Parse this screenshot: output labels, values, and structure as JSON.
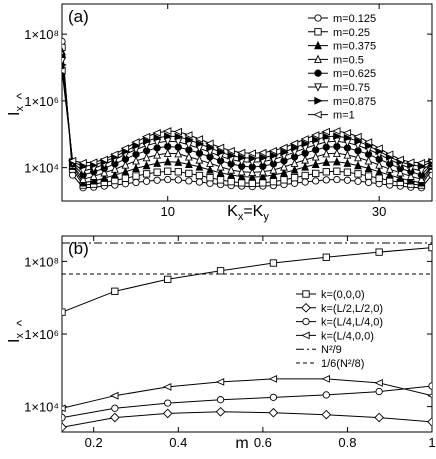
{
  "chart_data": [
    {
      "type": "line",
      "panel_label": "(a)",
      "xlabel": "K_x=K_y",
      "ylabel": "I_x",
      "y_scale": "log",
      "xlim": [
        0,
        35
      ],
      "ylim": [
        1000,
        800000000
      ],
      "x_ticks": [
        {
          "value": 10,
          "label": "10"
        },
        {
          "value": 30,
          "label": "30"
        }
      ],
      "y_ticks": [
        {
          "value": 10000,
          "label": "1×10⁴"
        },
        {
          "value": 1000000,
          "label": "1×10⁶"
        },
        {
          "value": 100000000,
          "label": "1×10⁸"
        }
      ],
      "legend_position": "top-right",
      "x": [
        0,
        1,
        2,
        3,
        4,
        5,
        6,
        7,
        8,
        9,
        10,
        11,
        12,
        13,
        14,
        15,
        16,
        17,
        18,
        19,
        20,
        21,
        22,
        23,
        24,
        25,
        26,
        27,
        28,
        29,
        30,
        31,
        32,
        33,
        34,
        35
      ],
      "series": [
        {
          "name": "m=0.125",
          "marker": "circle",
          "values": [
            60000000,
            6000,
            2500,
            2600,
            2800,
            3000,
            3300,
            3600,
            3900,
            4200,
            4400,
            4300,
            4000,
            3700,
            3400,
            3100,
            2900,
            2800,
            2700,
            2800,
            2900,
            3100,
            3400,
            3700,
            4000,
            4300,
            4400,
            4200,
            3900,
            3600,
            3300,
            3000,
            2800,
            2600,
            2500,
            6000
          ]
        },
        {
          "name": "m=0.25",
          "marker": "square",
          "values": [
            40000000,
            9000,
            3000,
            3200,
            3600,
            4100,
            4800,
            5600,
            6500,
            7300,
            7800,
            7500,
            6700,
            5800,
            5000,
            4300,
            3800,
            3500,
            3400,
            3500,
            3800,
            4300,
            5000,
            5800,
            6700,
            7500,
            7800,
            7300,
            6500,
            5600,
            4800,
            4100,
            3600,
            3200,
            3000,
            9000
          ]
        },
        {
          "name": "m=0.375",
          "marker": "triangle-up",
          "values": [
            30000000,
            11000,
            3500,
            4000,
            4800,
            6000,
            7500,
            9500,
            11500,
            13500,
            15000,
            14500,
            12500,
            10500,
            8500,
            7000,
            6000,
            5400,
            5200,
            5400,
            6000,
            7000,
            8500,
            10500,
            12500,
            14500,
            15000,
            13500,
            11500,
            9500,
            7500,
            6000,
            4800,
            4000,
            3500,
            11000
          ]
        },
        {
          "name": "m=0.5",
          "marker": "triangle-up-open",
          "values": [
            25000000,
            12000,
            4500,
            5500,
            7000,
            9000,
            12000,
            16000,
            20000,
            24000,
            27000,
            26000,
            21000,
            17000,
            13500,
            10500,
            8500,
            7500,
            7200,
            7500,
            8500,
            10500,
            13500,
            17000,
            21000,
            26000,
            27000,
            24000,
            20000,
            16000,
            12000,
            9000,
            7000,
            5500,
            4500,
            12000
          ]
        },
        {
          "name": "m=0.625",
          "marker": "dot",
          "values": [
            20000000,
            13000,
            6000,
            7500,
            9500,
            13000,
            18000,
            25000,
            32000,
            39000,
            43000,
            41000,
            34000,
            27000,
            21000,
            16000,
            13000,
            11000,
            10500,
            11000,
            13000,
            16000,
            21000,
            27000,
            34000,
            41000,
            43000,
            39000,
            32000,
            25000,
            18000,
            13000,
            9500,
            7500,
            6000,
            13000
          ]
        },
        {
          "name": "m=0.75",
          "marker": "triangle-down",
          "values": [
            16000000,
            14000,
            8000,
            9500,
            12500,
            17500,
            25000,
            35000,
            46000,
            56000,
            62000,
            59000,
            48000,
            38000,
            29000,
            22000,
            17500,
            15000,
            14500,
            15000,
            17500,
            22000,
            29000,
            38000,
            48000,
            59000,
            62000,
            56000,
            46000,
            35000,
            25000,
            17500,
            12500,
            9500,
            8000,
            14000
          ]
        },
        {
          "name": "m=0.875",
          "marker": "triangle-right",
          "values": [
            12000000,
            15000,
            11000,
            12000,
            15000,
            21000,
            31000,
            45000,
            62000,
            78000,
            88000,
            85000,
            68000,
            52000,
            39000,
            29000,
            23000,
            20000,
            19000,
            20000,
            23000,
            29000,
            39000,
            52000,
            68000,
            85000,
            88000,
            78000,
            62000,
            45000,
            31000,
            21000,
            15000,
            12000,
            11000,
            15000
          ]
        },
        {
          "name": "m=1",
          "marker": "triangle-left",
          "values": [
            8000000,
            16000,
            14000,
            14500,
            17500,
            25000,
            38000,
            58000,
            85000,
            110000,
            125000,
            120000,
            95000,
            72000,
            53000,
            40000,
            32000,
            28000,
            27000,
            28000,
            32000,
            40000,
            53000,
            72000,
            95000,
            120000,
            125000,
            110000,
            85000,
            58000,
            38000,
            25000,
            17500,
            14500,
            14000,
            16000
          ]
        }
      ]
    },
    {
      "type": "line",
      "panel_label": "(b)",
      "xlabel": "m",
      "ylabel": "I_x",
      "y_scale": "log",
      "xlim": [
        0.125,
        1.0
      ],
      "ylim": [
        2000,
        500000000
      ],
      "x_ticks": [
        {
          "value": 0.2,
          "label": "0.2"
        },
        {
          "value": 0.4,
          "label": "0.4"
        },
        {
          "value": 0.6,
          "label": "0.6"
        },
        {
          "value": 0.8,
          "label": "0.8"
        },
        {
          "value": 1.0,
          "label": "1"
        }
      ],
      "y_ticks": [
        {
          "value": 10000,
          "label": "1×10⁴"
        },
        {
          "value": 1000000,
          "label": "1×10⁶"
        },
        {
          "value": 100000000,
          "label": "1×10⁸"
        }
      ],
      "legend_position": "middle-right",
      "x": [
        0.125,
        0.25,
        0.375,
        0.5,
        0.625,
        0.75,
        0.875,
        1.0
      ],
      "series": [
        {
          "name": "k=(0,0,0)",
          "marker": "square",
          "values": [
            4000000,
            15000000,
            32000000,
            55000000,
            90000000,
            130000000,
            180000000,
            240000000
          ]
        },
        {
          "name": "k=(L/2,L/2,0)",
          "marker": "diamond",
          "values": [
            2700,
            5000,
            6500,
            7200,
            6800,
            6000,
            5000,
            3800
          ]
        },
        {
          "name": "k=(L/4,L/4,0)",
          "marker": "circle",
          "values": [
            5000,
            9000,
            12500,
            15500,
            18000,
            21000,
            26000,
            37000
          ]
        },
        {
          "name": "k=(L/4,0,0)",
          "marker": "triangle-left",
          "values": [
            9000,
            20000,
            35000,
            48000,
            58000,
            58000,
            45000,
            20000
          ]
        }
      ],
      "reference_lines": [
        {
          "name": "N²/9",
          "style": "dash-dot",
          "value": 320000000
        },
        {
          "name": "1/6(N²/8)",
          "style": "dashed",
          "value": 45000000
        }
      ]
    }
  ]
}
